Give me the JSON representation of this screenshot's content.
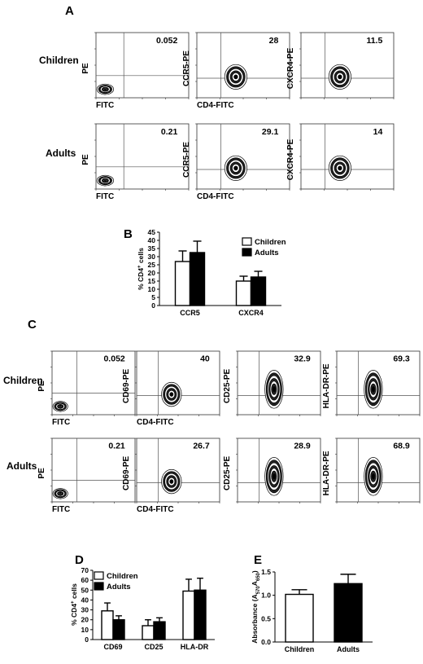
{
  "panels": {
    "A": {
      "letter": "A",
      "rows": [
        {
          "label": "Children",
          "plots": [
            {
              "ylabel": "PE",
              "xlabel": "FITC",
              "value": "0.052",
              "kind": "control"
            },
            {
              "ylabel": "CCR5-PE",
              "xlabel": "CD4-FITC",
              "value": "28",
              "kind": "blob"
            },
            {
              "ylabel": "CXCR4-PE",
              "xlabel": "",
              "value": "11.5",
              "kind": "blob"
            }
          ]
        },
        {
          "label": "Adults",
          "plots": [
            {
              "ylabel": "PE",
              "xlabel": "FITC",
              "value": "0.21",
              "kind": "control"
            },
            {
              "ylabel": "CCR5-PE",
              "xlabel": "CD4-FITC",
              "value": "29.1",
              "kind": "blob"
            },
            {
              "ylabel": "CXCR4-PE",
              "xlabel": "",
              "value": "14",
              "kind": "blob"
            }
          ]
        }
      ]
    },
    "C": {
      "letter": "C",
      "rows": [
        {
          "label": "Children",
          "plots": [
            {
              "ylabel": "PE",
              "xlabel": "FITC",
              "value": "0.052",
              "kind": "control"
            },
            {
              "ylabel": "CD69-PE",
              "xlabel": "CD4-FITC",
              "value": "40",
              "kind": "blob"
            },
            {
              "ylabel": "CD25-PE",
              "xlabel": "",
              "value": "32.9",
              "kind": "tall"
            },
            {
              "ylabel": "HLA-DR-PE",
              "xlabel": "",
              "value": "69.3",
              "kind": "tall"
            }
          ]
        },
        {
          "label": "Adults",
          "plots": [
            {
              "ylabel": "PE",
              "xlabel": "FITC",
              "value": "0.21",
              "kind": "control"
            },
            {
              "ylabel": "CD69-PE",
              "xlabel": "CD4-FITC",
              "value": "26.7",
              "kind": "blob"
            },
            {
              "ylabel": "CD25-PE",
              "xlabel": "",
              "value": "28.9",
              "kind": "tall"
            },
            {
              "ylabel": "HLA-DR-PE",
              "xlabel": "",
              "value": "68.9",
              "kind": "tall"
            }
          ]
        }
      ]
    }
  },
  "chart_data": [
    {
      "id": "B",
      "type": "bar",
      "letter": "B",
      "categories": [
        "CCR5",
        "CXCR4"
      ],
      "series": [
        {
          "name": "Children",
          "values": [
            27,
            15
          ],
          "errors": [
            6.5,
            3
          ],
          "color": "#ffffff"
        },
        {
          "name": "Adults",
          "values": [
            32.5,
            17.5
          ],
          "errors": [
            7,
            3.5
          ],
          "color": "#000000"
        }
      ],
      "ylabel_main": "% CD4",
      "ylabel_sup": "+",
      "ylabel_tail": " cells",
      "ylim": [
        0,
        45
      ],
      "yticks": [
        "0",
        "5",
        "10",
        "15",
        "20",
        "25",
        "30",
        "35",
        "40",
        "45"
      ],
      "legend": "top-right"
    },
    {
      "id": "D",
      "type": "bar",
      "letter": "D",
      "categories": [
        "CD69",
        "CD25",
        "HLA-DR"
      ],
      "series": [
        {
          "name": "Children",
          "values": [
            29,
            14,
            49
          ],
          "errors": [
            8,
            6,
            12
          ],
          "color": "#ffffff"
        },
        {
          "name": "Adults",
          "values": [
            20,
            18,
            50
          ],
          "errors": [
            4,
            4,
            12
          ],
          "color": "#000000"
        }
      ],
      "ylabel_main": "% CD4",
      "ylabel_sup": "+",
      "ylabel_tail": " cells",
      "ylim": [
        0,
        70
      ],
      "yticks": [
        "0",
        "10",
        "20",
        "30",
        "40",
        "50",
        "60",
        "70"
      ],
      "legend": "top-left"
    },
    {
      "id": "E",
      "type": "bar",
      "letter": "E",
      "categories": [
        "Children",
        "Adults"
      ],
      "series": [
        {
          "name": "",
          "values": [
            1.02,
            1.25
          ],
          "errors": [
            0.1,
            0.2
          ],
          "colors": [
            "#ffffff",
            "#000000"
          ]
        }
      ],
      "ylabel_main": "Absorbance (A",
      "ylabel_sub1": "570",
      "ylabel_mid": "A",
      "ylabel_sub2": "650",
      "ylabel_end": ")",
      "ylim": [
        0,
        1.5
      ],
      "yticks": [
        "0.0",
        "0.5",
        "1.0",
        "1.5"
      ]
    }
  ]
}
